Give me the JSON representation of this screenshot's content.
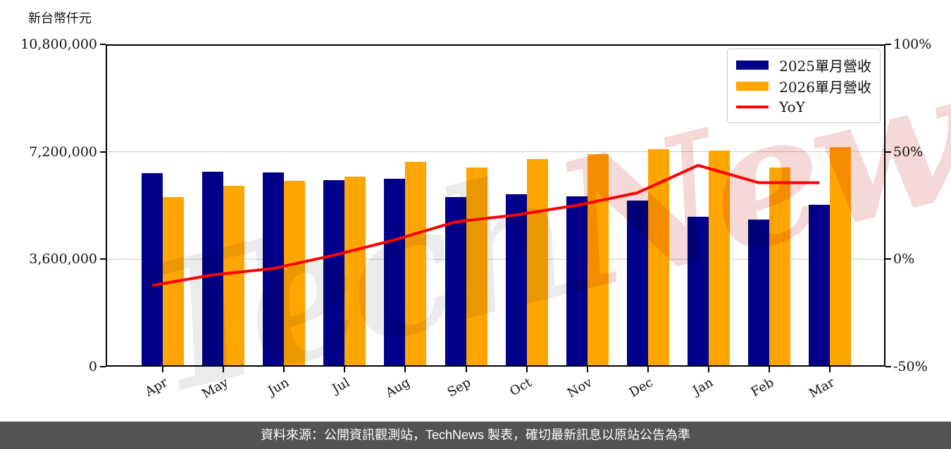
{
  "figure": {
    "unit_label": "新台幣仟元",
    "watermark": {
      "part1": "Tech",
      "part2": "News",
      "part1_color": "#ebebeb",
      "part2_color": "#f5d8d8"
    },
    "footer": "資料來源：公開資訊觀測站，TechNews 製表，確切最新訊息以原站公告為準",
    "footer_bg": "#535353"
  },
  "chart_data": {
    "type": "bar",
    "subtype": "grouped-bars-with-line",
    "categories": [
      "Apr",
      "May",
      "Jun",
      "Jul",
      "Aug",
      "Sep",
      "Oct",
      "Nov",
      "Dec",
      "Jan",
      "Feb",
      "Mar"
    ],
    "series": [
      {
        "name": "2025單月營收",
        "type": "bar",
        "axis": "left",
        "color": "#00008B",
        "values": [
          6480000,
          6540000,
          6510000,
          6250000,
          6300000,
          5680000,
          5770000,
          5700000,
          5570000,
          5030000,
          4920000,
          5420000
        ]
      },
      {
        "name": "2026單月營收",
        "type": "bar",
        "axis": "left",
        "color": "#FFA500",
        "values": [
          5690000,
          6060000,
          6230000,
          6370000,
          6870000,
          6670000,
          6960000,
          7130000,
          7290000,
          7230000,
          6670000,
          7350000
        ]
      },
      {
        "name": "YoY",
        "type": "line",
        "axis": "right",
        "color": "#FF0000",
        "values_pct": [
          -12.2,
          -7.3,
          -4.3,
          1.9,
          9.0,
          17.4,
          20.6,
          25.1,
          30.9,
          43.7,
          35.6,
          35.6
        ]
      }
    ],
    "left_axis": {
      "label": "新台幣仟元",
      "min": 0,
      "max": 10800000,
      "ticks": [
        0,
        3600000,
        7200000,
        10800000
      ],
      "tick_labels": [
        "0",
        "3,600,000",
        "7,200,000",
        "10,800,000"
      ]
    },
    "right_axis": {
      "min": -50,
      "max": 100,
      "ticks": [
        -50,
        0,
        50,
        100
      ],
      "tick_labels": [
        "-50%",
        "0%",
        "50%",
        "100%"
      ]
    },
    "grid": "horizontal-light-gray",
    "legend": {
      "position": "upper-right",
      "entries": [
        "2025單月營收",
        "2026單月營收",
        "YoY"
      ]
    }
  }
}
